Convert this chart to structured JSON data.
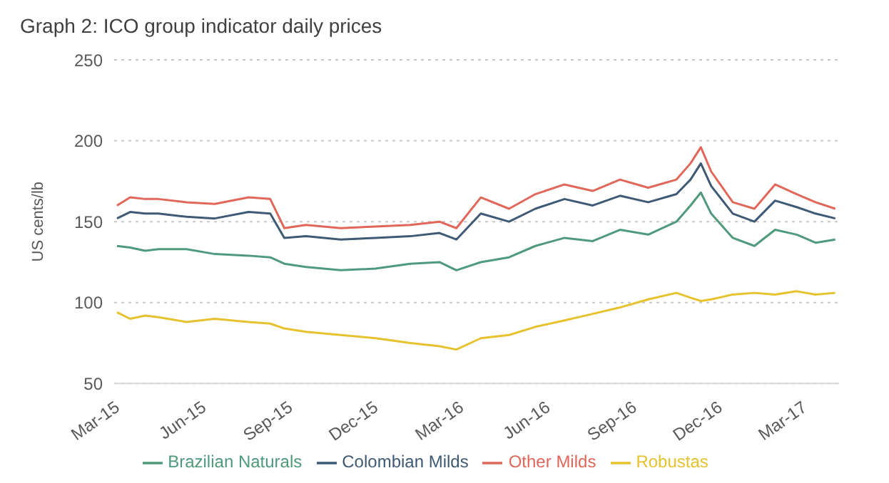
{
  "chart_data": {
    "type": "line",
    "title": "Graph 2: ICO group indicator daily prices",
    "ylabel": "US cents/lb",
    "x": [
      "2015-03-04",
      "2015-03-18",
      "2015-04-03",
      "2015-04-17",
      "2015-05-17",
      "2015-06-16",
      "2015-07-22",
      "2015-08-14",
      "2015-08-29",
      "2015-09-21",
      "2015-10-28",
      "2015-12-04",
      "2016-01-10",
      "2016-02-10",
      "2016-02-28",
      "2016-03-25",
      "2016-04-24",
      "2016-05-22",
      "2016-06-22",
      "2016-07-22",
      "2016-08-20",
      "2016-09-19",
      "2016-10-19",
      "2016-11-03",
      "2016-11-14",
      "2016-11-25",
      "2016-12-18",
      "2017-01-10",
      "2017-02-01",
      "2017-02-24",
      "2017-03-16",
      "2017-04-06"
    ],
    "series": [
      {
        "name": "Colombian Milds",
        "color": "#3e5a74",
        "values": [
          152,
          156,
          155,
          155,
          153,
          152,
          156,
          155,
          140,
          141,
          139,
          140,
          141,
          143,
          139,
          155,
          150,
          158,
          164,
          160,
          166,
          162,
          167,
          176,
          186,
          172,
          155,
          150,
          163,
          159,
          155,
          152
        ]
      },
      {
        "name": "Other Milds",
        "color": "#e0675a",
        "values": [
          160,
          165,
          164,
          164,
          162,
          161,
          165,
          164,
          146,
          148,
          146,
          147,
          148,
          150,
          146,
          165,
          158,
          167,
          173,
          169,
          176,
          171,
          176,
          186,
          196,
          181,
          162,
          158,
          173,
          167,
          162,
          158
        ]
      },
      {
        "name": "Brazilian Naturals",
        "color": "#4f9a7c",
        "values": [
          135,
          134,
          132,
          133,
          133,
          130,
          129,
          128,
          124,
          122,
          120,
          121,
          124,
          125,
          120,
          125,
          128,
          135,
          140,
          138,
          145,
          142,
          150,
          160,
          168,
          155,
          140,
          135,
          145,
          142,
          137,
          139
        ]
      },
      {
        "name": "Robustas",
        "color": "#e6c22f",
        "values": [
          94,
          90,
          92,
          91,
          88,
          90,
          88,
          87,
          84,
          82,
          80,
          78,
          75,
          73,
          71,
          78,
          80,
          85,
          89,
          93,
          97,
          102,
          106,
          103,
          101,
          102,
          105,
          106,
          105,
          107,
          105,
          106
        ]
      }
    ],
    "xlim": [
      "2015-03-01",
      "2017-04-10"
    ],
    "xticks": [
      {
        "value": "2015-03-01",
        "label": "Mar-15"
      },
      {
        "value": "2015-06-01",
        "label": "Jun-15"
      },
      {
        "value": "2015-09-01",
        "label": "Sep-15"
      },
      {
        "value": "2015-12-01",
        "label": "Dec-15"
      },
      {
        "value": "2016-03-01",
        "label": "Mar-16"
      },
      {
        "value": "2016-06-01",
        "label": "Jun-16"
      },
      {
        "value": "2016-09-01",
        "label": "Sep-16"
      },
      {
        "value": "2016-12-01",
        "label": "Dec-16"
      },
      {
        "value": "2017-03-01",
        "label": "Mar-17"
      }
    ],
    "ylim": [
      50,
      250
    ],
    "yticks": [
      50,
      100,
      150,
      200,
      250
    ],
    "grid": "y",
    "legend": "bottom",
    "marker": "none",
    "line_style": "solid"
  }
}
